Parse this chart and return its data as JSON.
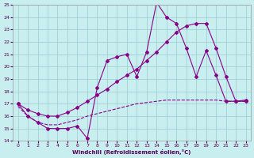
{
  "xlabel": "Windchill (Refroidissement éolien,°C)",
  "xlim": [
    -0.5,
    23.5
  ],
  "ylim": [
    14,
    25
  ],
  "xticks": [
    0,
    1,
    2,
    3,
    4,
    5,
    6,
    7,
    8,
    9,
    10,
    11,
    12,
    13,
    14,
    15,
    16,
    17,
    18,
    19,
    20,
    21,
    22,
    23
  ],
  "yticks": [
    14,
    15,
    16,
    17,
    18,
    19,
    20,
    21,
    22,
    23,
    24,
    25
  ],
  "bg_color": "#c8eef0",
  "line_color": "#880088",
  "grid_color": "#99cccc",
  "series": [
    {
      "x": [
        0,
        1,
        2,
        3,
        4,
        5,
        6,
        7,
        8,
        9,
        10,
        11,
        12,
        13,
        14,
        15,
        16,
        17,
        18,
        19,
        20,
        21,
        22,
        23
      ],
      "y": [
        17.0,
        16.0,
        15.5,
        15.0,
        15.0,
        15.0,
        15.2,
        14.2,
        18.3,
        20.5,
        20.8,
        21.0,
        19.2,
        21.2,
        25.2,
        24.0,
        23.5,
        21.5,
        19.2,
        21.3,
        19.3,
        17.2,
        17.2,
        17.2
      ],
      "marker": "D",
      "linestyle": "-",
      "has_marker": true
    },
    {
      "x": [
        0,
        1,
        2,
        3,
        4,
        5,
        6,
        7,
        8,
        9,
        10,
        11,
        12,
        13,
        14,
        15,
        16,
        17,
        18,
        19,
        20,
        21,
        22,
        23
      ],
      "y": [
        17.0,
        16.5,
        16.2,
        16.0,
        16.0,
        16.3,
        16.7,
        17.2,
        17.7,
        18.2,
        18.8,
        19.3,
        19.8,
        20.5,
        21.2,
        22.0,
        22.8,
        23.3,
        23.5,
        23.5,
        21.5,
        19.2,
        17.2,
        17.3
      ],
      "marker": "D",
      "linestyle": "-",
      "has_marker": true
    },
    {
      "x": [
        0,
        1,
        2,
        3,
        4,
        5,
        6,
        7,
        8,
        9,
        10,
        11,
        12,
        13,
        14,
        15,
        16,
        17,
        18,
        19,
        20,
        21,
        22,
        23
      ],
      "y": [
        16.8,
        16.0,
        15.5,
        15.3,
        15.3,
        15.5,
        15.7,
        16.0,
        16.2,
        16.4,
        16.6,
        16.8,
        17.0,
        17.1,
        17.2,
        17.3,
        17.3,
        17.3,
        17.3,
        17.3,
        17.3,
        17.2,
        17.2,
        17.2
      ],
      "marker": null,
      "linestyle": "--",
      "has_marker": false
    }
  ]
}
